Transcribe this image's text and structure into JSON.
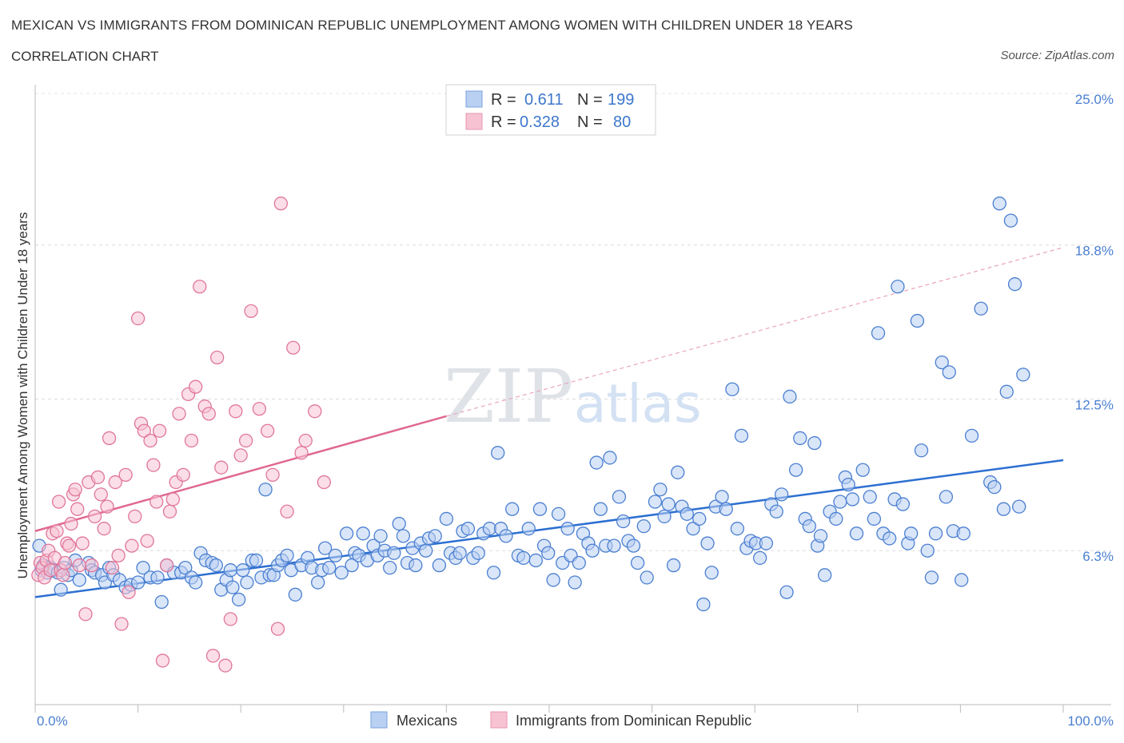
{
  "title": "MEXICAN VS IMMIGRANTS FROM DOMINICAN REPUBLIC UNEMPLOYMENT AMONG WOMEN WITH CHILDREN UNDER 18 YEARS",
  "subtitle": "CORRELATION CHART",
  "source": "Source: ZipAtlas.com",
  "watermark": {
    "zip": "ZIP",
    "atlas": "atlas"
  },
  "colors": {
    "blue": "#4a7fd1",
    "blue_fill": "#b9d0f2",
    "blue_line": "#2c6fd1",
    "pink": "#e0769a",
    "pink_fill": "#f7c3d3",
    "pink_line": "#e06890"
  },
  "legend": {
    "r_label": "R =",
    "n_label": "N =",
    "rows": [
      {
        "series": "Mexicans",
        "r": "0.611",
        "n": "199",
        "color": "blue"
      },
      {
        "series": "Immigrants from Dominican Republic",
        "r": "0.328",
        "n": "80",
        "color": "pink"
      }
    ]
  },
  "chart_data": {
    "type": "scatter",
    "xlabel": "",
    "ylabel": "Unemployment Among Women with Children Under 18 years",
    "xlim": [
      0,
      100
    ],
    "ylim": [
      0,
      25
    ],
    "x_tick_labels": [
      "0.0%",
      "100.0%"
    ],
    "y_ticks": [
      6.3,
      12.5,
      18.8,
      25.0
    ],
    "y_tick_labels": [
      "6.3%",
      "12.5%",
      "18.8%",
      "25.0%"
    ],
    "grid": true,
    "legend_position": "top-center",
    "series": [
      {
        "name": "Mexicans",
        "color": "blue",
        "trend": {
          "x": [
            0,
            100
          ],
          "y": [
            4.4,
            10.0
          ],
          "style": "solid"
        },
        "points": [
          [
            0.4,
            6.5
          ],
          [
            0.6,
            5.5
          ],
          [
            0.8,
            5.7
          ],
          [
            1.2,
            5.4
          ],
          [
            1.5,
            5.6
          ],
          [
            1.8,
            5.5
          ],
          [
            2.2,
            5.4
          ],
          [
            2.5,
            4.7
          ],
          [
            2.8,
            5.6
          ],
          [
            3.2,
            5.3
          ],
          [
            3.5,
            5.5
          ],
          [
            3.9,
            5.9
          ],
          [
            4.3,
            5.1
          ],
          [
            5.2,
            5.8
          ],
          [
            5.5,
            5.5
          ],
          [
            5.8,
            5.4
          ],
          [
            6.5,
            5.3
          ],
          [
            6.8,
            5.0
          ],
          [
            7.2,
            5.6
          ],
          [
            7.6,
            5.3
          ],
          [
            8.2,
            5.1
          ],
          [
            8.8,
            4.8
          ],
          [
            9.3,
            4.9
          ],
          [
            10.0,
            5.0
          ],
          [
            10.5,
            5.6
          ],
          [
            11.2,
            5.2
          ],
          [
            11.9,
            5.2
          ],
          [
            12.3,
            4.2
          ],
          [
            12.8,
            5.7
          ],
          [
            13.5,
            5.4
          ],
          [
            14.2,
            5.4
          ],
          [
            14.6,
            5.6
          ],
          [
            15.2,
            5.2
          ],
          [
            15.6,
            5.0
          ],
          [
            16.1,
            6.2
          ],
          [
            16.6,
            5.9
          ],
          [
            17.2,
            5.8
          ],
          [
            17.6,
            5.7
          ],
          [
            18.1,
            4.7
          ],
          [
            18.6,
            5.1
          ],
          [
            19.0,
            5.5
          ],
          [
            19.2,
            4.8
          ],
          [
            19.8,
            4.3
          ],
          [
            20.2,
            5.5
          ],
          [
            20.6,
            5.0
          ],
          [
            21.1,
            5.9
          ],
          [
            21.5,
            5.9
          ],
          [
            22.0,
            5.2
          ],
          [
            22.4,
            8.8
          ],
          [
            22.8,
            5.3
          ],
          [
            23.2,
            5.3
          ],
          [
            23.6,
            5.7
          ],
          [
            24.0,
            5.9
          ],
          [
            24.5,
            6.1
          ],
          [
            24.9,
            5.5
          ],
          [
            25.3,
            4.5
          ],
          [
            25.9,
            5.7
          ],
          [
            26.5,
            6.0
          ],
          [
            26.9,
            5.6
          ],
          [
            27.5,
            5.0
          ],
          [
            27.9,
            5.5
          ],
          [
            28.2,
            6.4
          ],
          [
            28.6,
            5.6
          ],
          [
            29.2,
            6.1
          ],
          [
            29.8,
            5.4
          ],
          [
            30.3,
            7.0
          ],
          [
            30.8,
            5.7
          ],
          [
            31.1,
            6.2
          ],
          [
            31.5,
            6.1
          ],
          [
            31.9,
            7.0
          ],
          [
            32.3,
            5.9
          ],
          [
            32.9,
            6.5
          ],
          [
            33.3,
            6.1
          ],
          [
            33.6,
            6.9
          ],
          [
            34.0,
            6.3
          ],
          [
            34.5,
            5.6
          ],
          [
            34.9,
            6.2
          ],
          [
            35.4,
            7.4
          ],
          [
            35.8,
            6.9
          ],
          [
            36.2,
            5.8
          ],
          [
            36.7,
            6.4
          ],
          [
            37.0,
            5.7
          ],
          [
            37.5,
            6.6
          ],
          [
            38.0,
            6.3
          ],
          [
            38.3,
            6.8
          ],
          [
            38.9,
            6.9
          ],
          [
            39.3,
            5.7
          ],
          [
            40.0,
            7.6
          ],
          [
            40.4,
            6.2
          ],
          [
            40.9,
            6.0
          ],
          [
            41.3,
            6.2
          ],
          [
            41.6,
            7.1
          ],
          [
            42.1,
            7.2
          ],
          [
            42.6,
            6.0
          ],
          [
            43.1,
            6.2
          ],
          [
            43.6,
            7.0
          ],
          [
            44.2,
            7.2
          ],
          [
            44.6,
            5.4
          ],
          [
            45.0,
            10.3
          ],
          [
            45.3,
            7.2
          ],
          [
            45.8,
            6.9
          ],
          [
            46.4,
            8.0
          ],
          [
            47.0,
            6.1
          ],
          [
            47.5,
            6.0
          ],
          [
            48.0,
            7.2
          ],
          [
            48.7,
            5.9
          ],
          [
            49.1,
            8.0
          ],
          [
            49.5,
            6.5
          ],
          [
            49.9,
            6.2
          ],
          [
            50.4,
            5.1
          ],
          [
            50.9,
            7.8
          ],
          [
            51.3,
            5.8
          ],
          [
            51.8,
            7.2
          ],
          [
            52.1,
            6.1
          ],
          [
            52.5,
            5.0
          ],
          [
            52.9,
            5.8
          ],
          [
            53.3,
            7.0
          ],
          [
            53.8,
            6.6
          ],
          [
            54.2,
            6.3
          ],
          [
            54.6,
            9.9
          ],
          [
            55.0,
            8.0
          ],
          [
            55.5,
            6.5
          ],
          [
            55.9,
            10.1
          ],
          [
            56.3,
            6.5
          ],
          [
            56.8,
            8.5
          ],
          [
            57.2,
            7.5
          ],
          [
            57.7,
            6.7
          ],
          [
            58.2,
            6.5
          ],
          [
            58.6,
            5.8
          ],
          [
            59.2,
            7.3
          ],
          [
            59.5,
            5.2
          ],
          [
            60.3,
            8.3
          ],
          [
            60.8,
            8.8
          ],
          [
            61.2,
            7.7
          ],
          [
            61.6,
            8.2
          ],
          [
            62.1,
            5.7
          ],
          [
            62.5,
            9.5
          ],
          [
            62.9,
            8.1
          ],
          [
            63.4,
            7.8
          ],
          [
            64.0,
            7.2
          ],
          [
            64.6,
            7.6
          ],
          [
            65.0,
            4.1
          ],
          [
            65.4,
            6.6
          ],
          [
            65.8,
            5.4
          ],
          [
            66.2,
            8.1
          ],
          [
            66.8,
            8.5
          ],
          [
            67.2,
            8.0
          ],
          [
            67.8,
            12.9
          ],
          [
            68.3,
            7.2
          ],
          [
            68.7,
            11.0
          ],
          [
            69.2,
            6.4
          ],
          [
            69.6,
            6.7
          ],
          [
            70.1,
            6.6
          ],
          [
            70.5,
            6.0
          ],
          [
            71.1,
            6.6
          ],
          [
            71.6,
            8.2
          ],
          [
            72.1,
            7.9
          ],
          [
            72.6,
            8.6
          ],
          [
            73.1,
            4.6
          ],
          [
            73.4,
            12.6
          ],
          [
            74.0,
            9.6
          ],
          [
            74.4,
            10.9
          ],
          [
            74.9,
            7.6
          ],
          [
            75.3,
            7.3
          ],
          [
            75.8,
            10.7
          ],
          [
            76.1,
            6.5
          ],
          [
            76.4,
            6.9
          ],
          [
            76.8,
            5.3
          ],
          [
            77.3,
            7.9
          ],
          [
            77.9,
            7.6
          ],
          [
            78.3,
            8.3
          ],
          [
            78.8,
            9.3
          ],
          [
            79.1,
            9.0
          ],
          [
            79.5,
            8.4
          ],
          [
            79.9,
            7.0
          ],
          [
            80.5,
            9.6
          ],
          [
            81.2,
            8.5
          ],
          [
            81.6,
            7.6
          ],
          [
            82.0,
            15.2
          ],
          [
            82.5,
            7.0
          ],
          [
            83.1,
            6.8
          ],
          [
            83.6,
            8.4
          ],
          [
            83.9,
            17.1
          ],
          [
            84.4,
            8.2
          ],
          [
            84.9,
            6.6
          ],
          [
            85.2,
            7.0
          ],
          [
            85.8,
            15.7
          ],
          [
            86.2,
            10.4
          ],
          [
            86.8,
            6.3
          ],
          [
            87.2,
            5.2
          ],
          [
            87.6,
            7.0
          ],
          [
            88.2,
            14.0
          ],
          [
            88.6,
            8.5
          ],
          [
            88.9,
            13.6
          ],
          [
            89.3,
            7.1
          ],
          [
            90.1,
            5.1
          ],
          [
            90.3,
            7.0
          ],
          [
            91.1,
            11.0
          ],
          [
            92.0,
            16.2
          ],
          [
            92.9,
            9.1
          ],
          [
            93.3,
            8.9
          ],
          [
            93.8,
            20.5
          ],
          [
            94.2,
            8.0
          ],
          [
            94.5,
            12.8
          ],
          [
            94.9,
            19.8
          ],
          [
            95.3,
            17.2
          ],
          [
            95.7,
            8.1
          ],
          [
            96.1,
            13.5
          ]
        ]
      },
      {
        "name": "Immigrants from Dominican Republic",
        "color": "pink",
        "trend": {
          "x": [
            0,
            40
          ],
          "y": [
            7.1,
            11.8
          ],
          "dashed_to": {
            "x": 100,
            "y": 18.7
          },
          "style": "solid-then-dashed"
        },
        "points": [
          [
            0.3,
            5.3
          ],
          [
            0.5,
            5.8
          ],
          [
            0.7,
            5.6
          ],
          [
            0.9,
            5.2
          ],
          [
            1.1,
            5.9
          ],
          [
            1.3,
            6.3
          ],
          [
            1.5,
            5.5
          ],
          [
            1.7,
            7.0
          ],
          [
            1.9,
            6.0
          ],
          [
            2.1,
            7.1
          ],
          [
            2.3,
            8.3
          ],
          [
            2.5,
            5.5
          ],
          [
            2.7,
            5.3
          ],
          [
            2.9,
            5.8
          ],
          [
            3.1,
            6.6
          ],
          [
            3.3,
            6.5
          ],
          [
            3.5,
            7.4
          ],
          [
            3.7,
            8.6
          ],
          [
            3.9,
            8.8
          ],
          [
            4.1,
            8.0
          ],
          [
            4.3,
            5.7
          ],
          [
            4.6,
            6.6
          ],
          [
            4.9,
            3.7
          ],
          [
            5.2,
            9.1
          ],
          [
            5.5,
            5.7
          ],
          [
            5.8,
            7.7
          ],
          [
            6.1,
            9.3
          ],
          [
            6.4,
            8.6
          ],
          [
            6.7,
            7.2
          ],
          [
            7.0,
            8.1
          ],
          [
            7.2,
            10.9
          ],
          [
            7.5,
            5.6
          ],
          [
            7.8,
            9.1
          ],
          [
            8.1,
            6.1
          ],
          [
            8.4,
            3.3
          ],
          [
            8.8,
            9.4
          ],
          [
            9.1,
            4.6
          ],
          [
            9.4,
            6.5
          ],
          [
            9.7,
            7.7
          ],
          [
            10.0,
            15.8
          ],
          [
            10.3,
            11.5
          ],
          [
            10.6,
            11.2
          ],
          [
            10.9,
            6.7
          ],
          [
            11.2,
            10.8
          ],
          [
            11.5,
            9.8
          ],
          [
            11.8,
            8.3
          ],
          [
            12.1,
            11.2
          ],
          [
            12.4,
            1.8
          ],
          [
            12.8,
            5.7
          ],
          [
            13.1,
            7.9
          ],
          [
            13.4,
            8.4
          ],
          [
            13.7,
            9.1
          ],
          [
            14.0,
            11.9
          ],
          [
            14.4,
            9.4
          ],
          [
            14.9,
            12.7
          ],
          [
            15.2,
            10.8
          ],
          [
            15.6,
            13.0
          ],
          [
            16.0,
            17.1
          ],
          [
            16.5,
            12.2
          ],
          [
            16.9,
            11.9
          ],
          [
            17.3,
            2.0
          ],
          [
            17.7,
            14.2
          ],
          [
            18.1,
            9.7
          ],
          [
            18.5,
            1.6
          ],
          [
            19.0,
            3.5
          ],
          [
            19.5,
            12.0
          ],
          [
            20.0,
            10.2
          ],
          [
            20.5,
            10.8
          ],
          [
            21.0,
            16.1
          ],
          [
            21.8,
            12.1
          ],
          [
            22.6,
            11.2
          ],
          [
            23.1,
            9.4
          ],
          [
            23.6,
            3.1
          ],
          [
            23.9,
            20.5
          ],
          [
            24.5,
            7.9
          ],
          [
            25.1,
            14.6
          ],
          [
            25.9,
            10.3
          ],
          [
            26.3,
            10.8
          ],
          [
            27.2,
            12.0
          ],
          [
            28.1,
            9.1
          ]
        ]
      }
    ]
  }
}
